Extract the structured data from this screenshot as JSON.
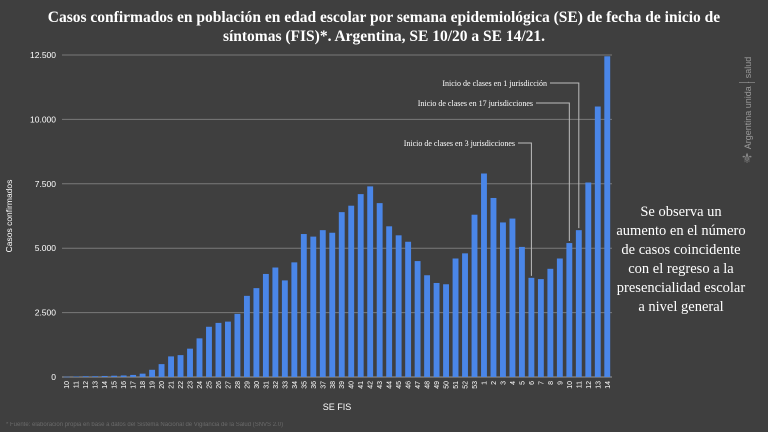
{
  "title_lines": [
    "Casos confirmados en población en edad escolar por semana epidemiológica (SE) de fecha de inicio de",
    "síntomas (FIS)*. Argentina, SE 10/20 a SE 14/21."
  ],
  "side_note": "Se observa un aumento en el número de casos coincidente con el regreso a la presencialidad escolar a nivel general",
  "brand": {
    "text": "Argentina unida",
    "extra": "salud"
  },
  "footnote": "* Fuente: elaboración propia en base a datos del Sistema Nacional de Vigilancia de la Salud (SNVS 2.0)",
  "chart_data": {
    "type": "bar",
    "xlabel": "SE FIS",
    "ylabel": "Casos confirmados",
    "ylim": [
      0,
      12500
    ],
    "yticks": [
      0,
      2500,
      5000,
      7500,
      10000,
      12500
    ],
    "ytick_labels": [
      "0",
      "2.500",
      "5.000",
      "7.500",
      "10.000",
      "12.500"
    ],
    "grid": true,
    "bar_color": "#4a86e8",
    "categories": [
      "10",
      "11",
      "12",
      "13",
      "14",
      "15",
      "16",
      "17",
      "18",
      "19",
      "20",
      "21",
      "22",
      "23",
      "24",
      "25",
      "26",
      "27",
      "28",
      "29",
      "30",
      "31",
      "32",
      "33",
      "34",
      "35",
      "36",
      "37",
      "38",
      "39",
      "40",
      "41",
      "42",
      "43",
      "44",
      "45",
      "46",
      "47",
      "48",
      "49",
      "50",
      "51",
      "52",
      "53",
      "1",
      "2",
      "3",
      "4",
      "5",
      "6",
      "7",
      "8",
      "9",
      "10",
      "11",
      "12",
      "13",
      "14"
    ],
    "values": [
      10,
      20,
      30,
      30,
      40,
      50,
      60,
      80,
      130,
      280,
      500,
      800,
      850,
      1100,
      1500,
      1950,
      2100,
      2150,
      2450,
      3150,
      3450,
      4000,
      4250,
      3750,
      4450,
      5550,
      5450,
      5700,
      5600,
      6400,
      6650,
      7100,
      7400,
      6750,
      5850,
      5500,
      5250,
      4500,
      3950,
      3650,
      3600,
      4600,
      4800,
      6300,
      7900,
      6950,
      6000,
      6150,
      5050,
      3850,
      3800,
      4200,
      4600,
      5200,
      5700,
      7550,
      10500,
      12450
    ],
    "annotations": [
      {
        "text": "Inicio de clases en 3 jurisdicciones",
        "category_index": 49
      },
      {
        "text": "Inicio de clases en 17 jurisdicciones",
        "category_index": 53
      },
      {
        "text": "Inicio de clases en 1 jurisdicción",
        "category_index": 54
      }
    ]
  }
}
